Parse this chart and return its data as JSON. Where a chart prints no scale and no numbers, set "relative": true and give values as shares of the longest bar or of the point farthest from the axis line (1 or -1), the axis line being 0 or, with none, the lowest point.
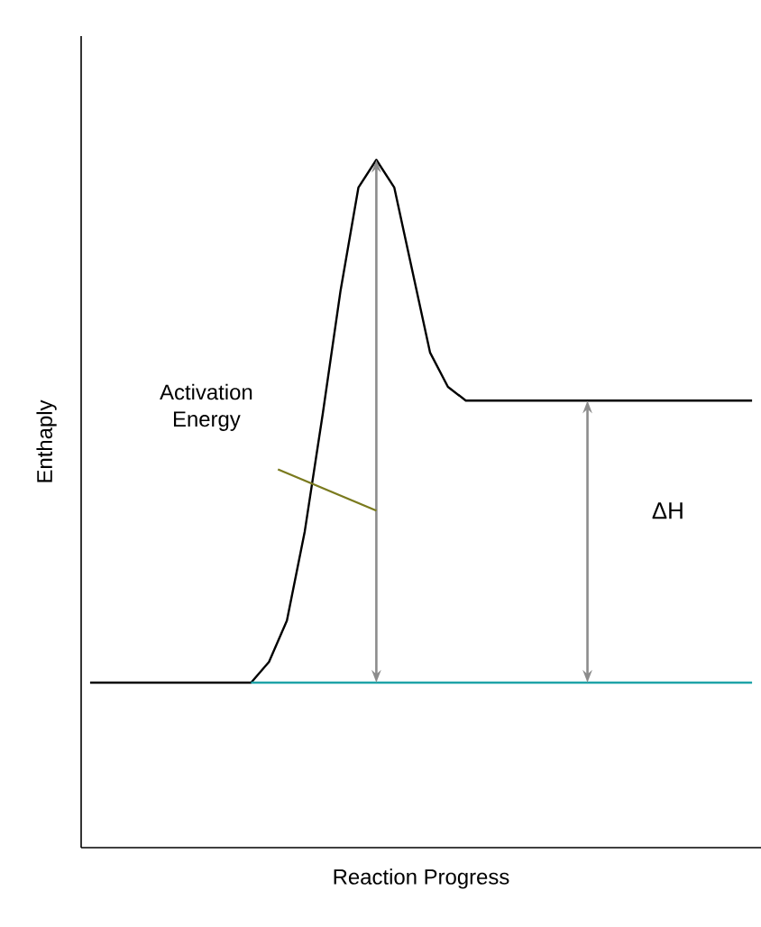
{
  "chart_data": {
    "type": "line",
    "relative": true,
    "xlabel": "Reaction Progress",
    "ylabel": "Enthaply",
    "categories": [
      null,
      null,
      null,
      null,
      null,
      null,
      null,
      null,
      null,
      null,
      null,
      null,
      null,
      null,
      null,
      null,
      null,
      null,
      null,
      null,
      null,
      null,
      null,
      null,
      null,
      null,
      null,
      null,
      null,
      null,
      null,
      null,
      null,
      null,
      null,
      null,
      null,
      null
    ],
    "series": [
      {
        "color": "#000000",
        "values": [
          0.24,
          0.24,
          0.24,
          0.24,
          0.24,
          0.24,
          0.24,
          0.24,
          0.24,
          0.24,
          0.27,
          0.33,
          0.46,
          0.63,
          0.81,
          0.96,
          1,
          0.96,
          0.84,
          0.72,
          0.67,
          0.65,
          0.65,
          0.65,
          0.65,
          0.65,
          0.65,
          0.65,
          0.65,
          0.65,
          0.65,
          0.65,
          0.65,
          0.65,
          0.65,
          0.65,
          0.65,
          0.65
        ]
      },
      {
        "color": "#1fa3a8",
        "values": [
          null,
          null,
          null,
          null,
          null,
          null,
          null,
          null,
          null,
          0.24,
          0.24,
          0.24,
          0.24,
          0.24,
          0.24,
          0.24,
          0.24,
          0.24,
          0.24,
          0.24,
          0.24,
          0.24,
          0.24,
          0.24,
          0.24,
          0.24,
          0.24,
          0.24,
          0.24,
          0.24,
          0.24,
          0.24,
          0.24,
          0.24,
          0.24,
          0.24,
          0.24,
          0.24
        ]
      }
    ],
    "annotations": [
      "Activation Energy",
      "ΔH"
    ],
    "marker": "none",
    "line_style": "solid"
  }
}
